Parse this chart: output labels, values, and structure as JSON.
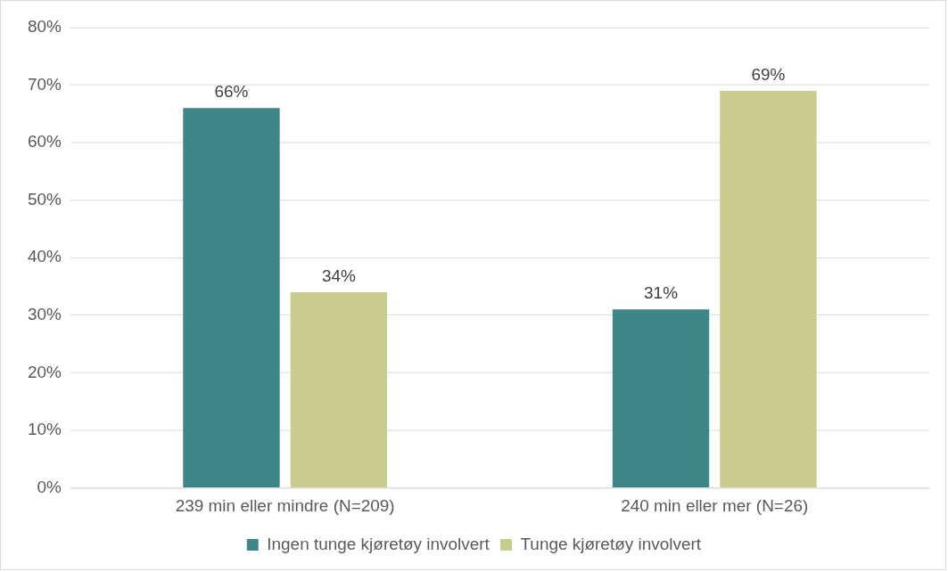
{
  "chart_data": {
    "type": "bar",
    "categories": [
      "239 min eller mindre (N=209)",
      "240 min eller mer (N=26)"
    ],
    "series": [
      {
        "name": "Ingen tunge kjøretøy involvert",
        "color": "#3f868a",
        "values": [
          66,
          31
        ],
        "value_labels": [
          "66%",
          "31%"
        ]
      },
      {
        "name": "Tunge kjøretøy involvert",
        "color": "#c8cc8e",
        "values": [
          34,
          69
        ],
        "value_labels": [
          "34%",
          "69%"
        ]
      }
    ],
    "ylim": [
      0,
      80
    ],
    "yticks": [
      {
        "value": 0,
        "label": "0%"
      },
      {
        "value": 10,
        "label": "10%"
      },
      {
        "value": 20,
        "label": "20%"
      },
      {
        "value": 30,
        "label": "30%"
      },
      {
        "value": 40,
        "label": "40%"
      },
      {
        "value": 50,
        "label": "50%"
      },
      {
        "value": 60,
        "label": "60%"
      },
      {
        "value": 70,
        "label": "70%"
      },
      {
        "value": 80,
        "label": "80%"
      }
    ],
    "grid": "y",
    "legend": "bottom"
  }
}
